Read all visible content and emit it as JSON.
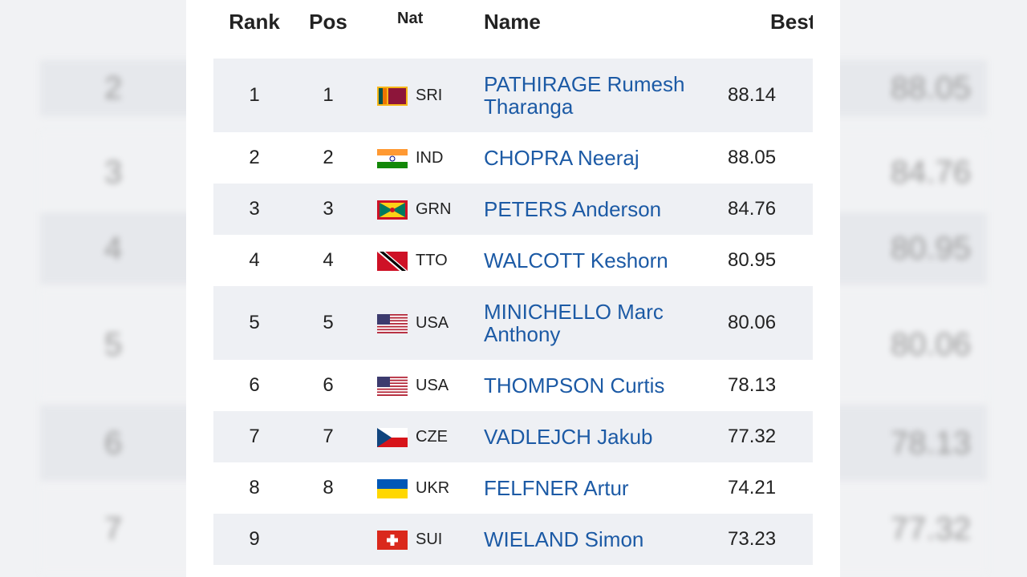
{
  "header": {
    "rank": "Rank",
    "pos": "Pos",
    "nat": "Nat",
    "name": "Name",
    "best": "Best"
  },
  "table": {
    "rows": [
      {
        "rank": "1",
        "pos": "1",
        "nat": "SRI",
        "name": "PATHIRAGE Rumesh Tharanga",
        "best": "88.14"
      },
      {
        "rank": "2",
        "pos": "2",
        "nat": "IND",
        "name": "CHOPRA Neeraj",
        "best": "88.05"
      },
      {
        "rank": "3",
        "pos": "3",
        "nat": "GRN",
        "name": "PETERS Anderson",
        "best": "84.76"
      },
      {
        "rank": "4",
        "pos": "4",
        "nat": "TTO",
        "name": "WALCOTT Keshorn",
        "best": "80.95"
      },
      {
        "rank": "5",
        "pos": "5",
        "nat": "USA",
        "name": "MINICHELLO Marc Anthony",
        "best": "80.06"
      },
      {
        "rank": "6",
        "pos": "6",
        "nat": "USA",
        "name": "THOMPSON Curtis",
        "best": "78.13"
      },
      {
        "rank": "7",
        "pos": "7",
        "nat": "CZE",
        "name": "VADLEJCH Jakub",
        "best": "77.32"
      },
      {
        "rank": "8",
        "pos": "8",
        "nat": "UKR",
        "name": "FELFNER Artur",
        "best": "74.21"
      },
      {
        "rank": "9",
        "pos": null,
        "nat": "SUI",
        "name": "WIELAND Simon",
        "best": "73.23"
      }
    ]
  },
  "backdrop": {
    "rows": [
      {
        "rank": "2",
        "best": "88.05"
      },
      {
        "rank": "3",
        "best": "84.76"
      },
      {
        "rank": "4",
        "best": "80.95"
      },
      {
        "rank": "5",
        "best": "80.06"
      },
      {
        "rank": "6",
        "best": "78.13"
      },
      {
        "rank": "7",
        "best": "77.32"
      }
    ]
  }
}
